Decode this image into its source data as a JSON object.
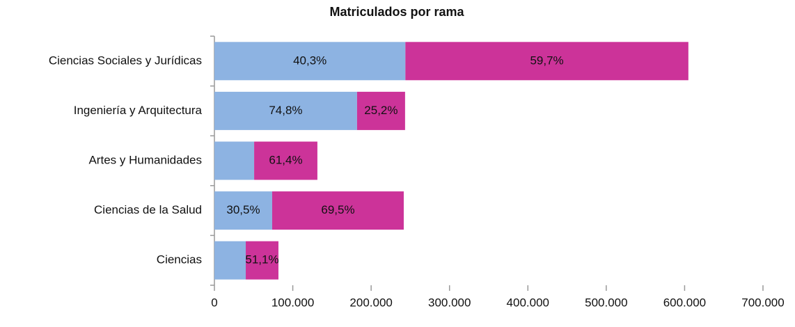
{
  "chart_data": {
    "type": "stacked_barh",
    "title": "Matriculados por rama",
    "categories": [
      "Ciencias Sociales y Jurídicas",
      "Ingeniería y Arquitectura",
      "Artes y Humanidades",
      "Ciencias de la Salud",
      "Ciencias"
    ],
    "series": [
      {
        "color": "#8db3e2",
        "values": [
          243700,
          182000,
          50700,
          73700,
          40000
        ],
        "value_labels": [
          "40,3%",
          "74,8%",
          null,
          "30,5%",
          null
        ]
      },
      {
        "color": "#cc3399",
        "values": [
          361100,
          61300,
          80700,
          167900,
          41700
        ],
        "value_labels": [
          "59,7%",
          "25,2%",
          "61,4%",
          "69,5%",
          "51,1%"
        ]
      }
    ],
    "xlim": [
      0,
      700000
    ],
    "xticks": [
      0,
      {
        "value": 100000,
        "label": "100.000"
      },
      {
        "value": 200000,
        "label": "200.000"
      },
      {
        "value": 300000,
        "label": "300.000"
      },
      {
        "value": 400000,
        "label": "400.000"
      },
      {
        "value": 500000,
        "label": "500.000"
      },
      {
        "value": 600000,
        "label": "600.000"
      },
      {
        "value": 700000,
        "label": "700.000"
      }
    ]
  }
}
